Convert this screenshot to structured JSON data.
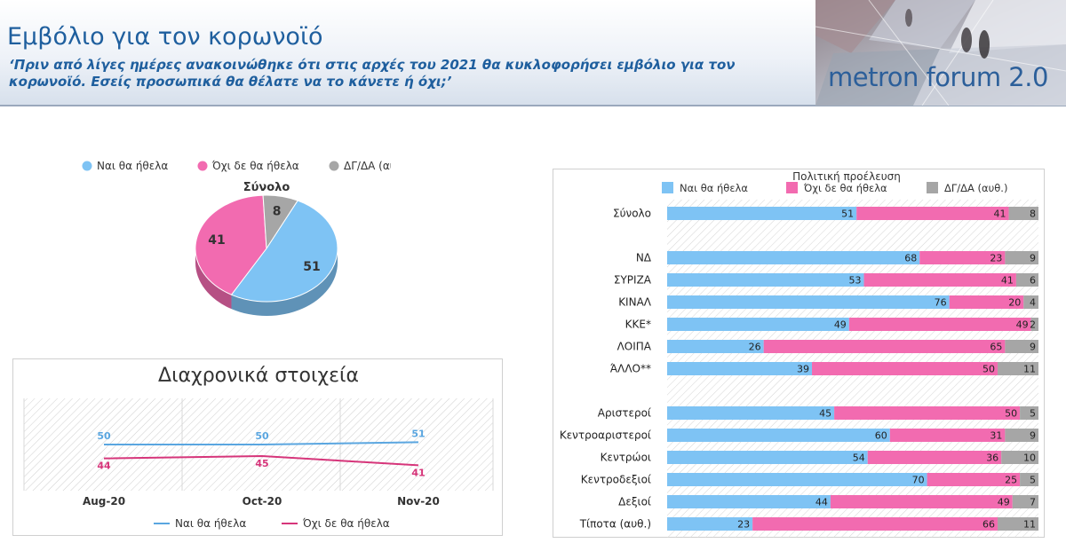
{
  "header": {
    "title": "Εμβόλιο για τον κορωνοϊό",
    "subtitle": "‘Πριν από λίγες ημέρες ανακοινώθηκε ότι στις αρχές του 2021 θα κυκλοφορήσει εμβόλιο για τον κορωνοϊό. Εσείς προσωπικά θα θέλατε να το κάνετε ή όχι;’",
    "logo_text": "metron forum 2.0"
  },
  "colors": {
    "yes": "#7ec3f4",
    "no": "#f26bb0",
    "dk": "#a6a6a6",
    "trend_yes": "#5aa6e0",
    "trend_no": "#d6357a"
  },
  "chart_data": [
    {
      "type": "pie",
      "title": "Σύνολο",
      "legend": [
        "Ναι θα ήθελα",
        "Όχι δε θα ήθελα",
        "ΔΓ/ΔΑ (αυθ.)"
      ],
      "values": [
        51,
        41,
        8
      ]
    },
    {
      "type": "line",
      "title": "Διαχρονικά στοιχεία",
      "categories": [
        "Aug-20",
        "Oct-20",
        "Nov-20"
      ],
      "series": [
        {
          "name": "Ναι θα ήθελα",
          "values": [
            50,
            50,
            51
          ]
        },
        {
          "name": "Όχι δε θα ήθελα",
          "values": [
            44,
            45,
            41
          ]
        }
      ],
      "legend_position": "bottom"
    },
    {
      "type": "bar",
      "title": "Πολιτική προέλευση",
      "stacked": true,
      "orientation": "horizontal",
      "legend": [
        "Ναι θα ήθελα",
        "Όχι δε θα ήθελα",
        "ΔΓ/ΔΑ (αυθ.)"
      ],
      "rows": [
        {
          "label": "Σύνολο",
          "values": [
            51,
            41,
            8
          ]
        },
        {
          "label": "",
          "values": null
        },
        {
          "label": "ΝΔ",
          "values": [
            68,
            23,
            9
          ]
        },
        {
          "label": "ΣΥΡΙΖΑ",
          "values": [
            53,
            41,
            6
          ]
        },
        {
          "label": "ΚΙΝΑΛ",
          "values": [
            76,
            20,
            4
          ]
        },
        {
          "label": "ΚΚΕ*",
          "values": [
            49,
            49,
            2
          ]
        },
        {
          "label": "ΛΟΙΠΑ",
          "values": [
            26,
            65,
            9
          ]
        },
        {
          "label": "ΆΛΛΟ**",
          "values": [
            39,
            50,
            11
          ]
        },
        {
          "label": "",
          "values": null
        },
        {
          "label": "Αριστεροί",
          "values": [
            45,
            50,
            5
          ]
        },
        {
          "label": "Κεντροαριστεροί",
          "values": [
            60,
            31,
            9
          ]
        },
        {
          "label": "Κεντρώοι",
          "values": [
            54,
            36,
            10
          ]
        },
        {
          "label": "Κεντροδεξιοί",
          "values": [
            70,
            25,
            5
          ]
        },
        {
          "label": "Δεξιοί",
          "values": [
            44,
            49,
            7
          ]
        },
        {
          "label": "Τίποτα (αυθ.)",
          "values": [
            23,
            66,
            11
          ]
        }
      ]
    }
  ]
}
